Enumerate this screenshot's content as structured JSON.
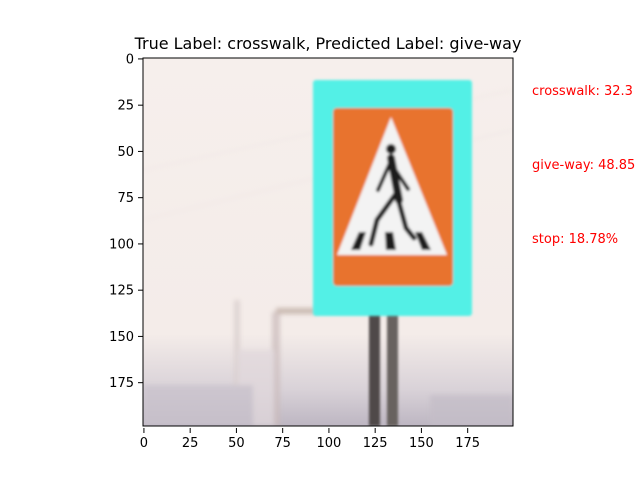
{
  "chart_data": {
    "type": "image",
    "title": "True Label: crosswalk, Predicted Label: give-way",
    "xlim": [
      0,
      199
    ],
    "ylim": [
      199,
      0
    ],
    "xticks": [
      0,
      25,
      50,
      75,
      100,
      125,
      150,
      175
    ],
    "yticks": [
      0,
      25,
      50,
      75,
      100,
      125,
      150,
      175
    ],
    "annotations": [
      "crosswalk: 32.3",
      "give-way: 48.85",
      "stop: 18.78%"
    ],
    "annotation_color": "#ff0000",
    "sign_colors": {
      "frame": "#53f0e6",
      "board": "#e8732e",
      "triangle": "#f3f3f3",
      "figure": "#1a1a1a"
    }
  }
}
